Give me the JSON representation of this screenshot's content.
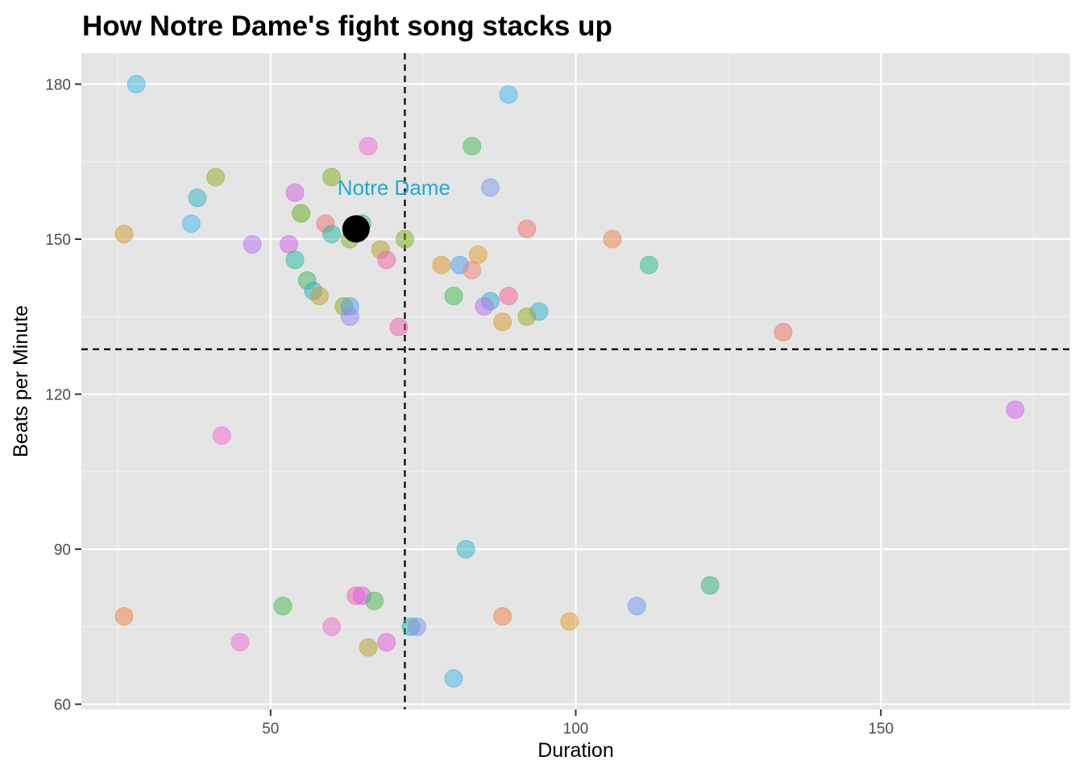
{
  "chart_data": {
    "type": "scatter",
    "title": "How Notre Dame's fight song stacks up",
    "xlabel": "Duration",
    "ylabel": "Beats per Minute",
    "xlim": [
      19,
      181
    ],
    "ylim": [
      59,
      186
    ],
    "x_ticks": [
      50,
      100,
      150
    ],
    "y_ticks": [
      60,
      90,
      120,
      150,
      180
    ],
    "grid": true,
    "reference_lines": {
      "x": 72,
      "y": 128.7
    },
    "highlight": {
      "label": "Notre Dame",
      "x": 64,
      "y": 152,
      "label_color": "#1fa9d6",
      "point_color": "#000000"
    },
    "points": [
      {
        "x": 28,
        "y": 180,
        "color": "#3fb6ee"
      },
      {
        "x": 89,
        "y": 178,
        "color": "#3fb6ee"
      },
      {
        "x": 66,
        "y": 168,
        "color": "#f06bd0"
      },
      {
        "x": 83,
        "y": 168,
        "color": "#43b94f"
      },
      {
        "x": 41,
        "y": 162,
        "color": "#9aa52a"
      },
      {
        "x": 60,
        "y": 162,
        "color": "#7fae1a"
      },
      {
        "x": 86,
        "y": 160,
        "color": "#7e95f0"
      },
      {
        "x": 54,
        "y": 159,
        "color": "#cf5ce8"
      },
      {
        "x": 38,
        "y": 158,
        "color": "#2eb4c4"
      },
      {
        "x": 55,
        "y": 155,
        "color": "#5fae1c"
      },
      {
        "x": 37,
        "y": 153,
        "color": "#3fb6ee"
      },
      {
        "x": 59,
        "y": 153,
        "color": "#f26d6b"
      },
      {
        "x": 65,
        "y": 153,
        "color": "#25b98b"
      },
      {
        "x": 92,
        "y": 152,
        "color": "#f26d6b"
      },
      {
        "x": 26,
        "y": 151,
        "color": "#c79a2c"
      },
      {
        "x": 60,
        "y": 151,
        "color": "#22b8a4"
      },
      {
        "x": 63,
        "y": 150,
        "color": "#8aab1f"
      },
      {
        "x": 72,
        "y": 150,
        "color": "#7fae1a"
      },
      {
        "x": 106,
        "y": 150,
        "color": "#ef7f45"
      },
      {
        "x": 47,
        "y": 149,
        "color": "#b56df3"
      },
      {
        "x": 53,
        "y": 149,
        "color": "#cf5ce8"
      },
      {
        "x": 68,
        "y": 148,
        "color": "#b2a228"
      },
      {
        "x": 84,
        "y": 147,
        "color": "#e49a2a"
      },
      {
        "x": 54,
        "y": 146,
        "color": "#22b8a4"
      },
      {
        "x": 69,
        "y": 146,
        "color": "#f45fa8"
      },
      {
        "x": 78,
        "y": 145,
        "color": "#d69a27"
      },
      {
        "x": 81,
        "y": 145,
        "color": "#4a9ff0"
      },
      {
        "x": 112,
        "y": 145,
        "color": "#2bba8a"
      },
      {
        "x": 83,
        "y": 144,
        "color": "#f37e76"
      },
      {
        "x": 56,
        "y": 142,
        "color": "#45b45c"
      },
      {
        "x": 57,
        "y": 140,
        "color": "#2cb2c4"
      },
      {
        "x": 58,
        "y": 139,
        "color": "#c79a2c"
      },
      {
        "x": 80,
        "y": 139,
        "color": "#43b94f"
      },
      {
        "x": 89,
        "y": 139,
        "color": "#f2608f"
      },
      {
        "x": 86,
        "y": 138,
        "color": "#2cb2c4"
      },
      {
        "x": 62,
        "y": 137,
        "color": "#7fae1a"
      },
      {
        "x": 63,
        "y": 137,
        "color": "#4a9ff0"
      },
      {
        "x": 85,
        "y": 137,
        "color": "#b56df3"
      },
      {
        "x": 94,
        "y": 136,
        "color": "#2bb5c9"
      },
      {
        "x": 63,
        "y": 135,
        "color": "#8d88f2"
      },
      {
        "x": 92,
        "y": 135,
        "color": "#9aa52a"
      },
      {
        "x": 88,
        "y": 134,
        "color": "#d69a27"
      },
      {
        "x": 71,
        "y": 133,
        "color": "#f45fa8"
      },
      {
        "x": 134,
        "y": 132,
        "color": "#f26d6b"
      },
      {
        "x": 172,
        "y": 117,
        "color": "#d65ceb"
      },
      {
        "x": 42,
        "y": 112,
        "color": "#f06bd0"
      },
      {
        "x": 82,
        "y": 90,
        "color": "#2bb5c9"
      },
      {
        "x": 122,
        "y": 83,
        "color": "#2fb86d"
      },
      {
        "x": 64,
        "y": 81,
        "color": "#f45fa8"
      },
      {
        "x": 65,
        "y": 81,
        "color": "#d65ceb"
      },
      {
        "x": 52,
        "y": 79,
        "color": "#43b94f"
      },
      {
        "x": 67,
        "y": 80,
        "color": "#43b94f"
      },
      {
        "x": 110,
        "y": 79,
        "color": "#6f96f4"
      },
      {
        "x": 26,
        "y": 77,
        "color": "#ef7f45"
      },
      {
        "x": 88,
        "y": 77,
        "color": "#ef7f45"
      },
      {
        "x": 99,
        "y": 76,
        "color": "#e49a2a"
      },
      {
        "x": 60,
        "y": 75,
        "color": "#f06bd0"
      },
      {
        "x": 73,
        "y": 75,
        "color": "#22b8a4"
      },
      {
        "x": 74,
        "y": 75,
        "color": "#8d88f2"
      },
      {
        "x": 45,
        "y": 72,
        "color": "#f06bd0"
      },
      {
        "x": 69,
        "y": 72,
        "color": "#e05ce0"
      },
      {
        "x": 66,
        "y": 71,
        "color": "#b2a228"
      },
      {
        "x": 80,
        "y": 65,
        "color": "#3fb6ee"
      }
    ]
  }
}
